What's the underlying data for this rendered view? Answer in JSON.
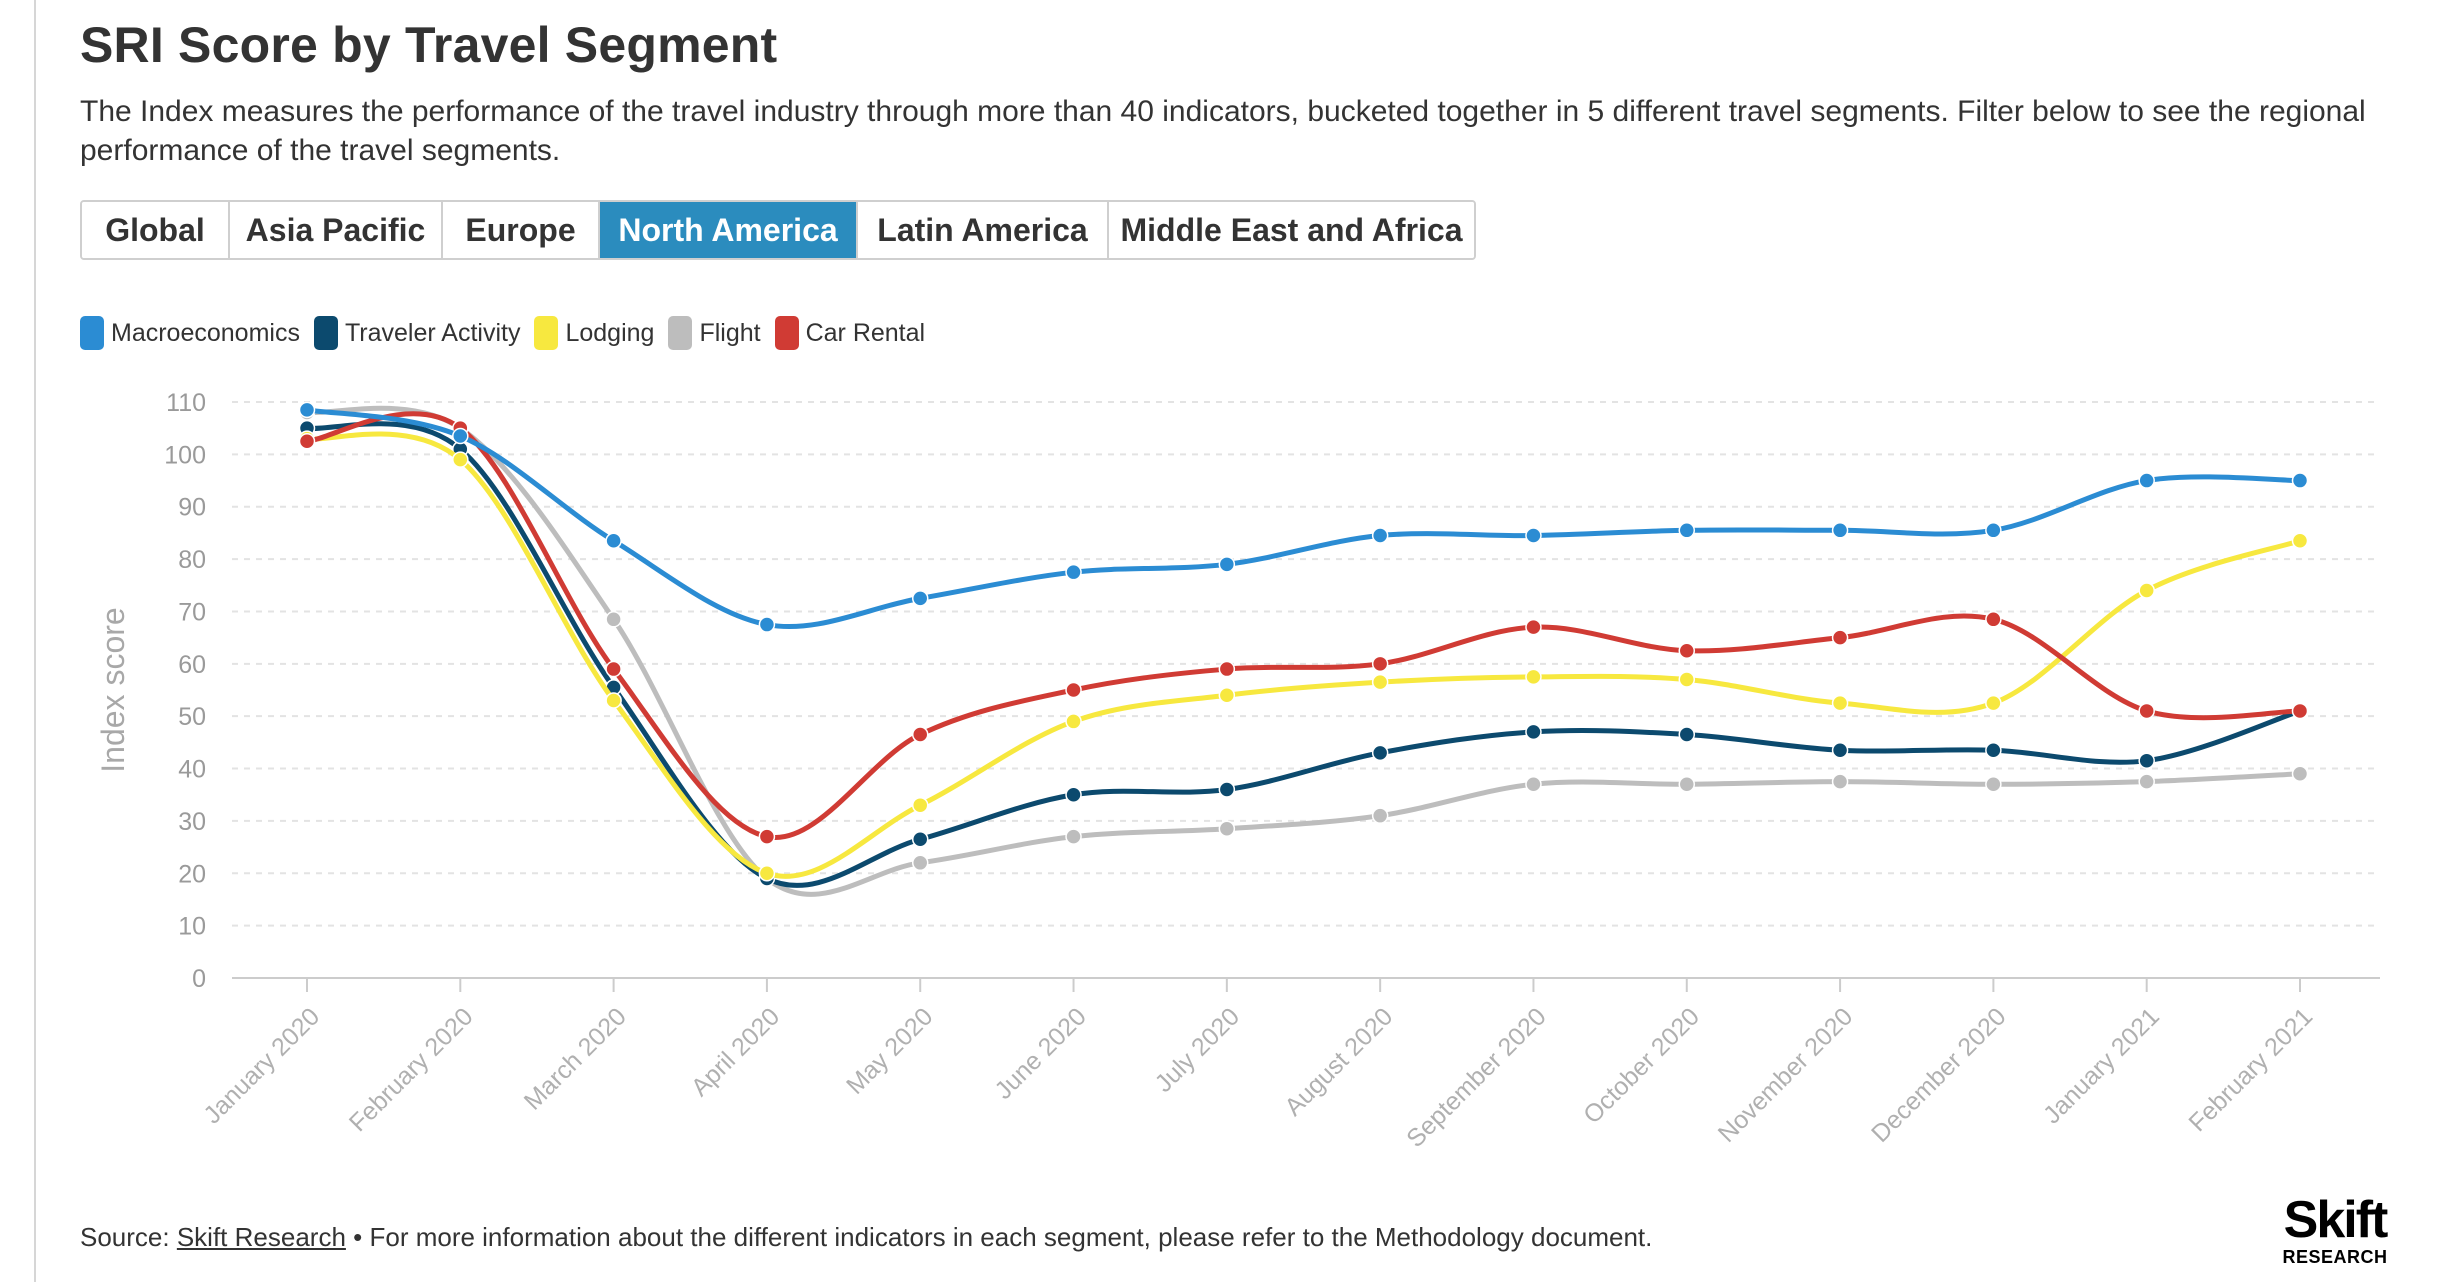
{
  "header": {
    "title": "SRI Score by Travel Segment",
    "subtitle": "The Index measures the performance of the travel industry through more than 40 indicators, bucketed together in 5 different travel segments. Filter below to see the regional performance of the travel segments."
  },
  "tabs": [
    {
      "label": "Global",
      "active": false
    },
    {
      "label": "Asia Pacific",
      "active": false
    },
    {
      "label": "Europe",
      "active": false
    },
    {
      "label": "North America",
      "active": true
    },
    {
      "label": "Latin America",
      "active": false
    },
    {
      "label": "Middle East and Africa",
      "active": false
    }
  ],
  "footer": {
    "source_prefix": "Source:",
    "source_link": "Skift Research",
    "note": " • For more information about the different indicators in each segment, please refer to the Methodology document."
  },
  "logo": {
    "main": "Skift",
    "sub": "RESEARCH"
  },
  "chart_data": {
    "type": "line",
    "title": "",
    "xlabel": "",
    "ylabel": "Index score",
    "ylim": [
      0,
      110
    ],
    "yticks": [
      0,
      10,
      20,
      30,
      40,
      50,
      60,
      70,
      80,
      90,
      100,
      110
    ],
    "grid": true,
    "legend_position": "top-left",
    "categories": [
      "January 2020",
      "February 2020",
      "March 2020",
      "April 2020",
      "May 2020",
      "June 2020",
      "July 2020",
      "August 2020",
      "September 2020",
      "October 2020",
      "November 2020",
      "December 2020",
      "January 2021",
      "February 2021"
    ],
    "series": [
      {
        "name": "Macroeconomics",
        "color": "#2b8cd3",
        "values": [
          108.5,
          103.5,
          83.5,
          67.5,
          72.5,
          77.5,
          79,
          84.5,
          84.5,
          85.5,
          85.5,
          85.5,
          95,
          95
        ]
      },
      {
        "name": "Traveler Activity",
        "color": "#0c4a6e",
        "values": [
          105,
          101,
          55.5,
          19,
          26.5,
          35,
          36,
          43,
          47,
          46.5,
          43.5,
          43.5,
          41.5,
          51
        ]
      },
      {
        "name": "Lodging",
        "color": "#f7e83f",
        "values": [
          103,
          99,
          53,
          20,
          33,
          49,
          54,
          56.5,
          57.5,
          57,
          52.5,
          52.5,
          74,
          83.5
        ]
      },
      {
        "name": "Flight",
        "color": "#bdbdbd",
        "values": [
          108,
          105,
          68.5,
          19,
          22,
          27,
          28.5,
          31,
          37,
          37,
          37.5,
          37,
          37.5,
          39
        ]
      },
      {
        "name": "Car Rental",
        "color": "#d03b34",
        "values": [
          102.5,
          105,
          59,
          27,
          46.5,
          55,
          59,
          60,
          67,
          62.5,
          65,
          68.5,
          51,
          51
        ]
      }
    ]
  }
}
